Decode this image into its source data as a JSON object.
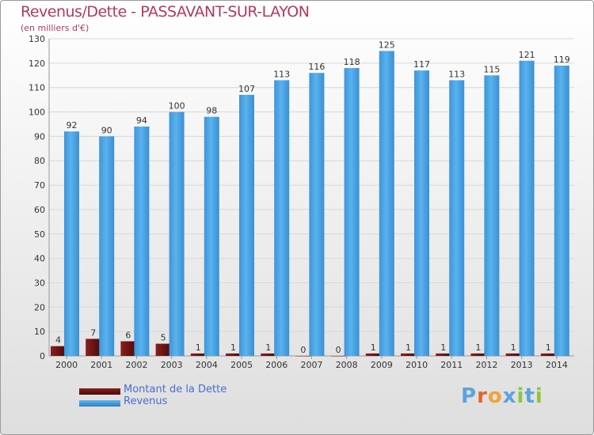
{
  "title": "Revenus/Dette - PASSAVANT-SUR-LAYON",
  "subtitle": "(en milliers d'€)",
  "legend": {
    "debt_label": "Montant de la Dette",
    "revenue_label": "Revenus"
  },
  "logo": {
    "text": "Proxiti",
    "letter_colors": [
      "#5ba3e0",
      "#e0662a",
      "#f2a23a",
      "#5ba3e0",
      "#8dc63f",
      "#5ba3e0",
      "#8dc63f"
    ]
  },
  "colors": {
    "debt": "#6b1414",
    "revenue": "#4da6e8",
    "revenue_dark": "#2e7fc0",
    "axis_text": "#333333",
    "grid": "#d8d8d8",
    "title": "#b03a5b"
  },
  "chart_data": {
    "type": "bar",
    "title": "Revenus/Dette - PASSAVANT-SUR-LAYON",
    "ylabel": "(en milliers d'€)",
    "ylim": [
      0,
      130
    ],
    "yticks": [
      0,
      10,
      20,
      30,
      40,
      50,
      60,
      70,
      80,
      90,
      100,
      110,
      120,
      130
    ],
    "grid": true,
    "legend_position": "bottom-left",
    "categories": [
      "2000",
      "2001",
      "2002",
      "2003",
      "2004",
      "2005",
      "2006",
      "2007",
      "2008",
      "2009",
      "2010",
      "2011",
      "2012",
      "2013",
      "2014"
    ],
    "series": [
      {
        "name": "Montant de la Dette",
        "values": [
          4,
          7,
          6,
          5,
          1,
          1,
          1,
          0,
          0,
          1,
          1,
          1,
          1,
          1,
          1
        ]
      },
      {
        "name": "Revenus",
        "values": [
          92,
          90,
          94,
          100,
          98,
          107,
          113,
          116,
          118,
          125,
          117,
          113,
          115,
          121,
          119
        ]
      }
    ]
  }
}
